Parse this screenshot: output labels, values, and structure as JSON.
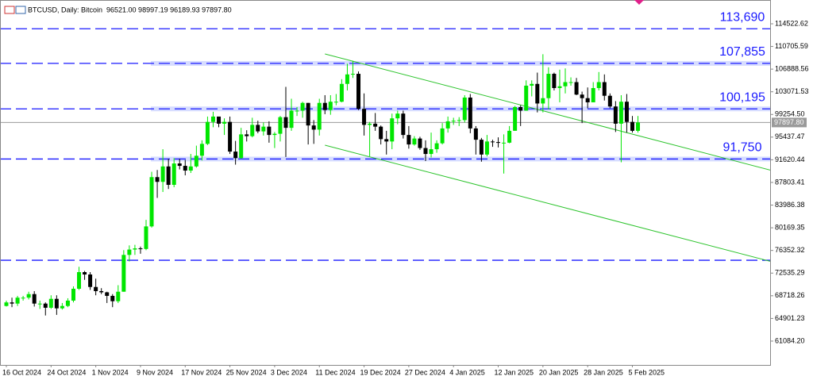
{
  "chart_data": {
    "type": "candlestick",
    "title": "BTCUSD, Daily: Bitcoin  96521.00 98997.19 96189.93 97897.80",
    "categories": [
      "16 Oct 2024",
      null,
      null,
      null,
      null,
      null,
      null,
      null,
      "24 Oct 2024",
      null,
      null,
      null,
      null,
      null,
      null,
      null,
      "1 Nov 2024",
      null,
      null,
      null,
      null,
      null,
      null,
      null,
      "9 Nov 2024",
      null,
      null,
      null,
      null,
      null,
      null,
      null,
      "17 Nov 2024",
      null,
      null,
      null,
      null,
      null,
      null,
      null,
      "25 Nov 2024",
      null,
      null,
      null,
      null,
      null,
      null,
      null,
      "3 Dec 2024",
      null,
      null,
      null,
      null,
      null,
      null,
      null,
      "11 Dec 2024",
      null,
      null,
      null,
      null,
      null,
      null,
      null,
      "19 Dec 2024",
      null,
      null,
      null,
      null,
      null,
      null,
      null,
      "27 Dec 2024",
      null,
      null,
      null,
      null,
      null,
      null,
      null,
      "4 Jan 2025",
      null,
      null,
      null,
      null,
      null,
      null,
      null,
      "12 Jan 2025",
      null,
      null,
      null,
      null,
      null,
      null,
      null,
      "20 Jan 2025",
      null,
      null,
      null,
      null,
      null,
      null,
      null,
      "28 Jan 2025",
      null,
      null,
      null,
      null,
      null,
      null,
      null,
      "5 Feb 2025",
      null
    ],
    "open": [
      67000,
      67600,
      67400,
      68400,
      68400,
      69000,
      67400,
      67400,
      66700,
      68200,
      66600,
      67000,
      67900,
      69900,
      72700,
      72300,
      70200,
      69500,
      69300,
      68700,
      67800,
      69400,
      75600,
      76500,
      76700,
      76600,
      80400,
      88700,
      87900,
      90500,
      87400,
      91000,
      90600,
      89800,
      90500,
      92300,
      94300,
      98000,
      98900,
      97700,
      98000,
      93000,
      91900,
      95900,
      95600,
      97500,
      96400,
      97200,
      95800,
      96000,
      98800,
      97000,
      99900,
      99900,
      101200,
      97400,
      96700,
      101200,
      100000,
      101400,
      101400,
      104400,
      106000,
      106100,
      100200,
      97500,
      97700,
      97200,
      95100,
      94700,
      98600,
      99400,
      95800,
      94200,
      95200,
      93600,
      92600,
      93400,
      94400,
      96900,
      98100,
      98200,
      98300,
      102100,
      96900,
      95000,
      92500,
      94700,
      94600,
      94500,
      94500,
      96500,
      100500,
      99900,
      104100,
      104400,
      101100,
      102000,
      106100,
      103700,
      104000,
      104700,
      104700,
      102600,
      102000,
      101300,
      103700,
      104700,
      102400,
      100600,
      97700,
      101400,
      98000,
      96500
    ],
    "high": [
      67900,
      68400,
      68700,
      68700,
      69400,
      69500,
      67900,
      67600,
      68800,
      68800,
      67500,
      68300,
      70300,
      73600,
      72900,
      72700,
      71600,
      70000,
      69400,
      69000,
      70500,
      76400,
      77200,
      77300,
      77000,
      81500,
      89600,
      89900,
      93400,
      91800,
      91900,
      91800,
      91600,
      92600,
      94000,
      94900,
      98900,
      99700,
      98800,
      98600,
      98900,
      94800,
      97000,
      96600,
      98700,
      98200,
      97900,
      98100,
      96300,
      99000,
      103900,
      101900,
      100500,
      101400,
      101200,
      98300,
      101900,
      102500,
      102500,
      102700,
      105200,
      107800,
      108300,
      106500,
      102800,
      98000,
      99500,
      97400,
      96500,
      99400,
      99900,
      99900,
      97300,
      95600,
      95500,
      94900,
      96200,
      94900,
      97800,
      98900,
      98700,
      98800,
      102500,
      102700,
      97300,
      95300,
      95800,
      95000,
      95400,
      95900,
      97300,
      100700,
      100800,
      105000,
      105000,
      106300,
      109400,
      107200,
      106300,
      106800,
      107000,
      105500,
      105400,
      103100,
      103800,
      104700,
      106400,
      106000,
      102800,
      101500,
      102500,
      102700,
      99000,
      99000
    ],
    "low": [
      66900,
      66800,
      67000,
      67900,
      68100,
      66900,
      66500,
      65400,
      66500,
      65500,
      66400,
      66800,
      67600,
      69700,
      71400,
      69700,
      68800,
      69000,
      67500,
      66800,
      67500,
      69400,
      74500,
      75600,
      75800,
      76400,
      80200,
      85200,
      86200,
      86700,
      87000,
      90000,
      89000,
      89400,
      90300,
      91500,
      94100,
      97100,
      97100,
      95800,
      92600,
      90800,
      91800,
      94700,
      95400,
      96100,
      95700,
      94500,
      93600,
      94700,
      92100,
      96500,
      99000,
      98700,
      94200,
      94300,
      95700,
      99300,
      99200,
      100800,
      101300,
      103300,
      105400,
      100000,
      95700,
      92200,
      96500,
      94200,
      92500,
      93400,
      97600,
      95200,
      93500,
      94000,
      93300,
      91400,
      92000,
      92800,
      94200,
      96200,
      97500,
      97300,
      97900,
      96100,
      92500,
      91300,
      92200,
      93800,
      93700,
      89300,
      94400,
      96500,
      97300,
      99900,
      102300,
      99600,
      99600,
      100100,
      103300,
      101300,
      102800,
      104100,
      102500,
      97800,
      100300,
      101300,
      103300,
      101600,
      100300,
      96300,
      91200,
      96200,
      96200,
      96200
    ],
    "close": [
      67600,
      67400,
      68400,
      68400,
      69000,
      67400,
      67400,
      66700,
      68200,
      66600,
      67000,
      67900,
      69900,
      72700,
      72300,
      70200,
      69500,
      69300,
      68700,
      67800,
      69400,
      75600,
      76500,
      76700,
      76600,
      80400,
      88700,
      87900,
      90500,
      87400,
      91000,
      90600,
      89800,
      90500,
      92300,
      94300,
      98000,
      98900,
      97700,
      98000,
      93000,
      91900,
      95900,
      95600,
      97500,
      96400,
      97200,
      95800,
      96000,
      98800,
      97000,
      99900,
      99900,
      101200,
      97400,
      96700,
      101200,
      100000,
      101400,
      101400,
      104400,
      106000,
      106100,
      100200,
      97500,
      97700,
      97200,
      95100,
      94700,
      98600,
      99400,
      95800,
      94200,
      95200,
      93600,
      92600,
      93400,
      94400,
      96900,
      98100,
      98200,
      98300,
      102100,
      96900,
      95000,
      92500,
      94700,
      94600,
      94500,
      94500,
      96500,
      100500,
      99900,
      104100,
      104400,
      101100,
      102000,
      106100,
      103700,
      104000,
      104700,
      104700,
      102600,
      102000,
      101300,
      103700,
      104700,
      102400,
      100600,
      97700,
      101400,
      98000,
      96500,
      97900
    ],
    "up_color": "#00e600",
    "down_color": "#000000",
    "ylim": [
      57070,
      118530
    ],
    "yticks": [
      114522.62,
      110705.59,
      106888.56,
      103071.53,
      {
        "value": 99254.5,
        "label": "99254.50"
      },
      95437.47,
      91620.44,
      87803.41,
      83986.38,
      80169.35,
      76352.32,
      72535.29,
      68718.26,
      64901.23,
      {
        "value": 61084.2,
        "label": "61084.20"
      }
    ],
    "levels": [
      {
        "value": 113690,
        "label": "113,690"
      },
      {
        "value": 107855,
        "label": "107,855",
        "zone": true
      },
      {
        "value": 100195,
        "label": "100,195",
        "zone": true
      },
      {
        "value": 91750,
        "label": "91,750",
        "zone": true
      },
      {
        "value": 74700
      }
    ],
    "level_color": "#1a1aff",
    "last_price": {
      "value": 97897.8,
      "label": "97897.80"
    },
    "channel": [
      {
        "start": [
          57,
          109450
        ],
        "end": [
          137,
          89800
        ]
      },
      {
        "start": [
          57,
          94080
        ],
        "end": [
          137,
          74440
        ]
      }
    ],
    "channel_color": "#2ec42e"
  }
}
